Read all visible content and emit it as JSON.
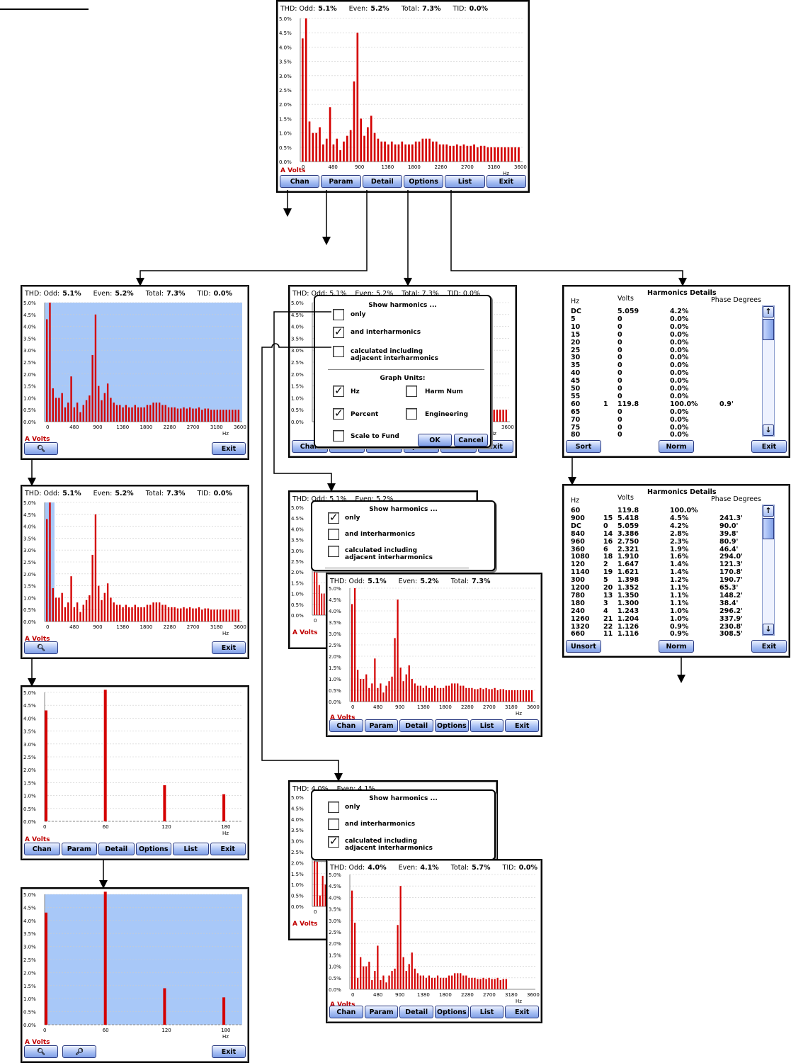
{
  "header_main": {
    "thd": "THD:",
    "odd_label": "Odd:",
    "odd": "5.1%",
    "even_label": "Even:",
    "even": "5.2%",
    "total_label": "Total:",
    "total": "7.3%",
    "tid_label": "TID:",
    "tid": "0.0%"
  },
  "header_s3": {
    "thd": "THD:",
    "odd_label": "Odd:",
    "odd": "5.1%",
    "even_label": "Even:",
    "even": "5.2%",
    "total_label": "Total:",
    "total": "7.3%"
  },
  "header_s5": {
    "thd": "THD:",
    "odd_label": "Odd:",
    "odd": "4.0%",
    "even_label": "Even:",
    "even": "4.1%",
    "total_label": "Total:",
    "total": "5.7%",
    "tid_label": "TID:",
    "tid": "0.0%"
  },
  "header_partial": {
    "a": "THD:  Odd:  5.1%",
    "b": "Even:  5.2%",
    "c": "Total:  7.3%",
    "d": "TID:  0.0%"
  },
  "header_partial2": {
    "a": "THD:  4.0%",
    "b": "Even:  4.1%",
    "c": "Total:  5.7%",
    "d": "TID:  0.0%"
  },
  "channel_label": "A  Volts",
  "x_unit": "Hz",
  "buttons": {
    "chan": "Chan",
    "param": "Param",
    "detail": "Detail",
    "options": "Options",
    "list": "List",
    "exit": "Exit",
    "sort": "Sort",
    "unsort": "Unsort",
    "norm": "Norm",
    "ok": "OK",
    "cancel": "Cancel"
  },
  "icons": {
    "zoom_in": "zoom-in-icon",
    "zoom_out": "zoom-out-icon",
    "up": "arrow-up-icon",
    "down": "arrow-down-icon"
  },
  "options_dialog": {
    "title": "Show harmonics ...",
    "only": "only",
    "inter": "and interharmonics",
    "calc_line1": "calculated including",
    "calc_line2": "adjacent interharmonics",
    "graph_units": "Graph Units:",
    "hz": "Hz",
    "harm_num": "Harm Num",
    "percent": "Percent",
    "engineering": "Engineering",
    "scale_to_fund": "Scale to Fund"
  },
  "details": {
    "col_hz": "Hz",
    "col_volts": "Volts",
    "title": "Harmonics Details",
    "col_phase": "Phase Degrees",
    "rows_unsorted": [
      [
        "DC",
        "",
        "5.059",
        "4.2%",
        ""
      ],
      [
        "5",
        "",
        "0",
        "0.0%",
        ""
      ],
      [
        "10",
        "",
        "0",
        "0.0%",
        ""
      ],
      [
        "15",
        "",
        "0",
        "0.0%",
        ""
      ],
      [
        "20",
        "",
        "0",
        "0.0%",
        ""
      ],
      [
        "25",
        "",
        "0",
        "0.0%",
        ""
      ],
      [
        "30",
        "",
        "0",
        "0.0%",
        ""
      ],
      [
        "35",
        "",
        "0",
        "0.0%",
        ""
      ],
      [
        "40",
        "",
        "0",
        "0.0%",
        ""
      ],
      [
        "45",
        "",
        "0",
        "0.0%",
        ""
      ],
      [
        "50",
        "",
        "0",
        "0.0%",
        ""
      ],
      [
        "55",
        "",
        "0",
        "0.0%",
        ""
      ],
      [
        "60",
        "1",
        "119.8",
        "100.0%",
        "0.9'"
      ],
      [
        "65",
        "",
        "0",
        "0.0%",
        ""
      ],
      [
        "70",
        "",
        "0",
        "0.0%",
        ""
      ],
      [
        "75",
        "",
        "0",
        "0.0%",
        ""
      ],
      [
        "80",
        "",
        "0",
        "0.0%",
        ""
      ]
    ],
    "rows_sorted": [
      [
        "60",
        "",
        "119.8",
        "100.0%",
        ""
      ],
      [
        "900",
        "15",
        "5.418",
        "4.5%",
        "241.3'"
      ],
      [
        "DC",
        "0",
        "5.059",
        "4.2%",
        "90.0'"
      ],
      [
        "840",
        "14",
        "3.386",
        "2.8%",
        "39.8'"
      ],
      [
        "960",
        "16",
        "2.750",
        "2.3%",
        "80.9'"
      ],
      [
        "360",
        "6",
        "2.321",
        "1.9%",
        "46.4'"
      ],
      [
        "1080",
        "18",
        "1.910",
        "1.6%",
        "294.0'"
      ],
      [
        "120",
        "2",
        "1.647",
        "1.4%",
        "121.3'"
      ],
      [
        "1140",
        "19",
        "1.621",
        "1.4%",
        "170.8'"
      ],
      [
        "300",
        "5",
        "1.398",
        "1.2%",
        "190.7'"
      ],
      [
        "1200",
        "20",
        "1.352",
        "1.1%",
        "65.3'"
      ],
      [
        "780",
        "13",
        "1.350",
        "1.1%",
        "148.2'"
      ],
      [
        "180",
        "3",
        "1.300",
        "1.1%",
        "38.4'"
      ],
      [
        "240",
        "4",
        "1.243",
        "1.0%",
        "296.2'"
      ],
      [
        "1260",
        "21",
        "1.204",
        "1.0%",
        "337.9'"
      ],
      [
        "1320",
        "22",
        "1.126",
        "0.9%",
        "230.8'"
      ],
      [
        "660",
        "11",
        "1.116",
        "0.9%",
        "308.5'"
      ]
    ]
  },
  "chart_data": [
    {
      "type": "bar",
      "title": "",
      "xlabel": "Hz",
      "ylabel": "",
      "ylim": [
        0,
        5.0
      ],
      "y_ticks": [
        "0.0%",
        "0.5%",
        "1.0%",
        "1.5%",
        "2.0%",
        "2.5%",
        "3.0%",
        "3.5%",
        "4.0%",
        "4.5%",
        "5.0%"
      ],
      "x_ticks": [
        "0",
        "480",
        "900",
        "1380",
        "1800",
        "2280",
        "2700",
        "3180",
        "3600"
      ],
      "xlim": [
        0,
        3600
      ],
      "series": [
        {
          "values": [
            4.3,
            5.0,
            1.4,
            1.0,
            1.0,
            1.2,
            0.6,
            0.8,
            1.9,
            0.6,
            0.8,
            0.4,
            0.7,
            0.9,
            1.1,
            2.8,
            4.5,
            1.5,
            0.9,
            1.2,
            1.6,
            1.0,
            0.8,
            0.7,
            0.7,
            0.6,
            0.7,
            0.6,
            0.6,
            0.7,
            0.6,
            0.6,
            0.6,
            0.7,
            0.7,
            0.8,
            0.8,
            0.8,
            0.7,
            0.7,
            0.6,
            0.6,
            0.6,
            0.55,
            0.55,
            0.6,
            0.55,
            0.6,
            0.55,
            0.55,
            0.6,
            0.5,
            0.55,
            0.55,
            0.5,
            0.5,
            0.5,
            0.5,
            0.5,
            0.5,
            0.5,
            0.5,
            0.5,
            0.5
          ]
        }
      ]
    },
    {
      "type": "bar",
      "title": "",
      "xlabel": "Hz",
      "ylim": [
        0,
        5.0
      ],
      "x_ticks": [
        "0",
        "60",
        "120",
        "180"
      ],
      "x": [
        0,
        60,
        120,
        180
      ],
      "series": [
        {
          "values": [
            4.3,
            5.1,
            1.4,
            1.05
          ]
        }
      ]
    },
    {
      "type": "bar",
      "title": "",
      "xlabel": "Hz",
      "ylim": [
        0,
        5.0
      ],
      "x_ticks": [
        "0",
        "480",
        "900",
        "1380",
        "1800",
        "2280",
        "2700",
        "3180",
        "3600"
      ],
      "series": [
        {
          "values": [
            4.3,
            2.9,
            0.5,
            1.4,
            1.0,
            1.0,
            1.2,
            0.4,
            0.8,
            1.9,
            0.4,
            0.6,
            0.3,
            0.6,
            0.8,
            0.9,
            2.8,
            4.5,
            1.4,
            0.8,
            1.1,
            1.6,
            0.9,
            0.7,
            0.6,
            0.6,
            0.5,
            0.6,
            0.5,
            0.5,
            0.6,
            0.5,
            0.5,
            0.5,
            0.6,
            0.6,
            0.7,
            0.7,
            0.7,
            0.6,
            0.6,
            0.5,
            0.5,
            0.5,
            0.45,
            0.45,
            0.5,
            0.45,
            0.5,
            0.45,
            0.45,
            0.5,
            0.4,
            0.45,
            0.45,
            0,
            0,
            0,
            0,
            0,
            0,
            0,
            0,
            0
          ]
        }
      ]
    }
  ]
}
